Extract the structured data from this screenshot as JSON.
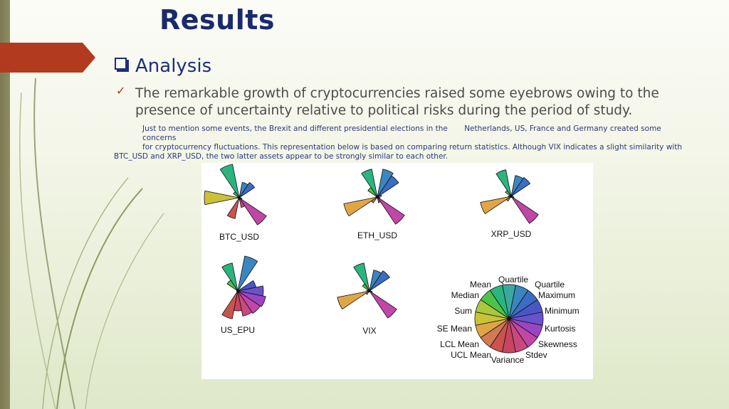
{
  "slide": {
    "title": "Results",
    "section_heading": "Analysis",
    "main_point": "The remarkable growth of cryptocurrencies raised some eyebrows owing to the presence of uncertainty relative to political risks during the period of study.",
    "detail_line1": "Just to mention some events, the Brexit and different presidential elections in the       Netherlands, US, France and Germany created some concerns",
    "detail_line2": "for cryptocurrency fluctuations. This representation below is based on comparing return statistics. Although VIX indicates a slight similarity with",
    "detail_line3": "BTC_USD and XRP_USD, the two latter assets appear to be strongly similar to each other."
  },
  "figure": {
    "star_labels": [
      "BTC_USD",
      "ETH_USD",
      "XRP_USD",
      "US_EPU",
      "VIX"
    ],
    "key_labels": [
      "Mean",
      "Quartile",
      "Quartile",
      "Maximum",
      "Minimum",
      "Kurtosis",
      "Skewness",
      "Stdev",
      "Variance",
      "UCL Mean",
      "LCL Mean",
      "SE Mean",
      "Sum",
      "Median"
    ],
    "colors": [
      "#3aa8a0",
      "#2bb57e",
      "#4fc24a",
      "#a7c93b",
      "#c9c236",
      "#e0a646",
      "#d07a57",
      "#c9544e",
      "#c9455f",
      "#c9497f",
      "#c046a8",
      "#9b45c4",
      "#6a52cc",
      "#4a56c8",
      "#3b6dc4",
      "#3a86c0"
    ]
  }
}
